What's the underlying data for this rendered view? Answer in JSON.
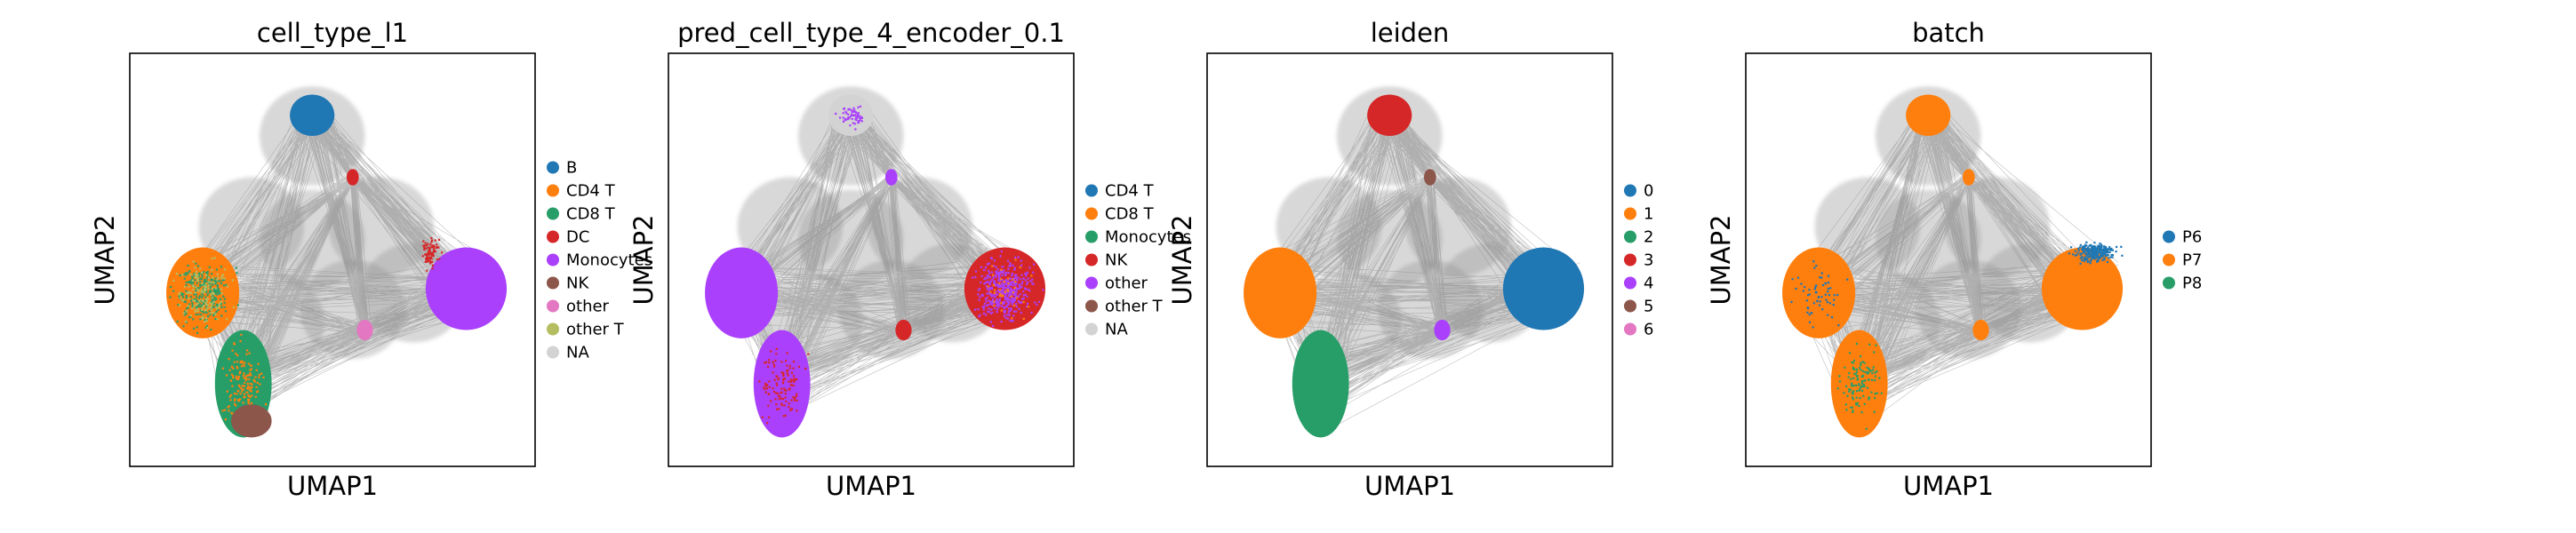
{
  "chart_data": [
    {
      "type": "scatter",
      "title": "cell_type_l1",
      "xlabel": "UMAP1",
      "ylabel": "UMAP2",
      "grid": false,
      "ticks": false,
      "legend_position": "right",
      "edges": "grey connectivity lines",
      "series": [
        {
          "name": "B",
          "color": "#1f77b4"
        },
        {
          "name": "CD4 T",
          "color": "#ff7f0e"
        },
        {
          "name": "CD8 T",
          "color": "#279e68"
        },
        {
          "name": "DC",
          "color": "#d62728"
        },
        {
          "name": "Monocytes",
          "color": "#aa40fc"
        },
        {
          "name": "NK",
          "color": "#8c564b"
        },
        {
          "name": "other",
          "color": "#e377c2"
        },
        {
          "name": "other T",
          "color": "#b5bd61"
        },
        {
          "name": "NA",
          "color": "#d3d3d3"
        }
      ]
    },
    {
      "type": "scatter",
      "title": "pred_cell_type_4_encoder_0.1",
      "xlabel": "UMAP1",
      "ylabel": "UMAP2",
      "grid": false,
      "ticks": false,
      "legend_position": "right",
      "edges": "grey connectivity lines",
      "series": [
        {
          "name": "CD4 T",
          "color": "#1f77b4"
        },
        {
          "name": "CD8 T",
          "color": "#ff7f0e"
        },
        {
          "name": "Monocytes",
          "color": "#279e68"
        },
        {
          "name": "NK",
          "color": "#d62728"
        },
        {
          "name": "other",
          "color": "#aa40fc"
        },
        {
          "name": "other T",
          "color": "#8c564b"
        },
        {
          "name": "NA",
          "color": "#d3d3d3"
        }
      ]
    },
    {
      "type": "scatter",
      "title": "leiden",
      "xlabel": "UMAP1",
      "ylabel": "UMAP2",
      "grid": false,
      "ticks": false,
      "legend_position": "right",
      "edges": "grey connectivity lines",
      "series": [
        {
          "name": "0",
          "color": "#1f77b4"
        },
        {
          "name": "1",
          "color": "#ff7f0e"
        },
        {
          "name": "2",
          "color": "#279e68"
        },
        {
          "name": "3",
          "color": "#d62728"
        },
        {
          "name": "4",
          "color": "#aa40fc"
        },
        {
          "name": "5",
          "color": "#8c564b"
        },
        {
          "name": "6",
          "color": "#e377c2"
        }
      ]
    },
    {
      "type": "scatter",
      "title": "batch",
      "xlabel": "UMAP1",
      "ylabel": "UMAP2",
      "grid": false,
      "ticks": false,
      "legend_position": "right",
      "edges": "grey connectivity lines",
      "series": [
        {
          "name": "P6",
          "color": "#1f77b4"
        },
        {
          "name": "P7",
          "color": "#ff7f0e"
        },
        {
          "name": "P8",
          "color": "#279e68"
        }
      ]
    }
  ]
}
